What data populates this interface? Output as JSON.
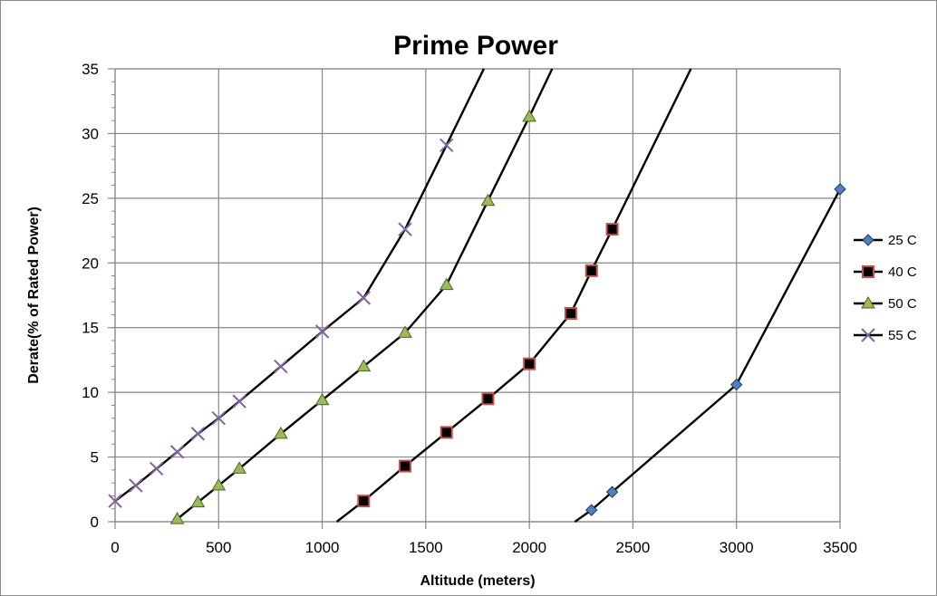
{
  "chart_data": {
    "type": "line",
    "title": "Prime Power",
    "xlabel": "Altitude (meters)",
    "ylabel": "Derate(% of Rated Power)",
    "xlim": [
      0,
      3500
    ],
    "ylim": [
      0,
      35
    ],
    "xticks": [
      "0",
      "500",
      "1000",
      "1500",
      "2000",
      "2500",
      "3000",
      "3500"
    ],
    "yticks": [
      "0",
      "5",
      "10",
      "15",
      "20",
      "25",
      "30",
      "35"
    ],
    "grid": true,
    "legend_position": "right",
    "series": [
      {
        "name": "25 C",
        "marker": "diamond",
        "marker_color": "#4f81bd",
        "line_color": "#000000",
        "line": [
          [
            2220,
            0
          ],
          [
            2300,
            0.9
          ],
          [
            2400,
            2.3
          ],
          [
            3000,
            10.6
          ],
          [
            3500,
            25.7
          ]
        ],
        "points": [
          [
            2300,
            0.9
          ],
          [
            2400,
            2.3
          ],
          [
            3000,
            10.6
          ],
          [
            3500,
            25.7
          ]
        ]
      },
      {
        "name": "40 C",
        "marker": "square",
        "marker_color": "#c0504d",
        "line_color": "#000000",
        "line": [
          [
            1070,
            0
          ],
          [
            1200,
            1.6
          ],
          [
            1400,
            4.3
          ],
          [
            1600,
            6.9
          ],
          [
            1800,
            9.5
          ],
          [
            2000,
            12.2
          ],
          [
            2200,
            16.1
          ],
          [
            2300,
            19.4
          ],
          [
            2400,
            22.6
          ],
          [
            2780,
            35
          ]
        ],
        "points": [
          [
            1200,
            1.6
          ],
          [
            1400,
            4.3
          ],
          [
            1600,
            6.9
          ],
          [
            1800,
            9.5
          ],
          [
            2000,
            12.2
          ],
          [
            2200,
            16.1
          ],
          [
            2300,
            19.4
          ],
          [
            2400,
            22.6
          ]
        ]
      },
      {
        "name": "50 C",
        "marker": "triangle",
        "marker_color": "#9bbb59",
        "line_color": "#000000",
        "line": [
          [
            300,
            0.2
          ],
          [
            400,
            1.5
          ],
          [
            500,
            2.8
          ],
          [
            600,
            4.1
          ],
          [
            800,
            6.8
          ],
          [
            1000,
            9.4
          ],
          [
            1200,
            12.0
          ],
          [
            1400,
            14.6
          ],
          [
            1600,
            18.3
          ],
          [
            1800,
            24.8
          ],
          [
            2000,
            31.3
          ],
          [
            2110,
            35
          ]
        ],
        "points": [
          [
            300,
            0.2
          ],
          [
            400,
            1.5
          ],
          [
            500,
            2.8
          ],
          [
            600,
            4.1
          ],
          [
            800,
            6.8
          ],
          [
            1000,
            9.4
          ],
          [
            1200,
            12.0
          ],
          [
            1400,
            14.6
          ],
          [
            1600,
            18.3
          ],
          [
            1800,
            24.8
          ],
          [
            2000,
            31.3
          ]
        ]
      },
      {
        "name": "55 C",
        "marker": "x",
        "marker_color": "#8064a2",
        "line_color": "#000000",
        "line": [
          [
            0,
            1.6
          ],
          [
            100,
            2.8
          ],
          [
            200,
            4.1
          ],
          [
            300,
            5.4
          ],
          [
            400,
            6.8
          ],
          [
            500,
            8.0
          ],
          [
            600,
            9.3
          ],
          [
            800,
            12.0
          ],
          [
            1000,
            14.7
          ],
          [
            1200,
            17.3
          ],
          [
            1400,
            22.6
          ],
          [
            1600,
            29.1
          ],
          [
            1780,
            35
          ]
        ],
        "points": [
          [
            0,
            1.6
          ],
          [
            100,
            2.8
          ],
          [
            200,
            4.1
          ],
          [
            300,
            5.4
          ],
          [
            400,
            6.8
          ],
          [
            500,
            8.0
          ],
          [
            600,
            9.3
          ],
          [
            800,
            12.0
          ],
          [
            1000,
            14.7
          ],
          [
            1200,
            17.3
          ],
          [
            1400,
            22.6
          ],
          [
            1600,
            29.1
          ]
        ]
      }
    ]
  }
}
